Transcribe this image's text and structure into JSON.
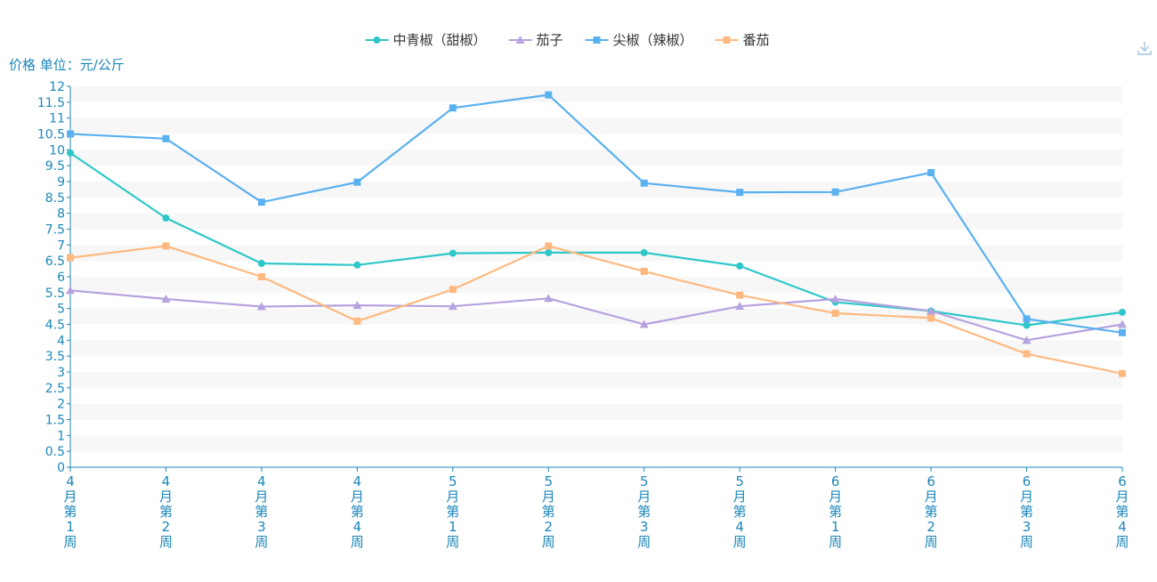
{
  "chart_data": {
    "type": "line",
    "ylabel": "价格 单位：元/公斤",
    "ylim": [
      0,
      12
    ],
    "ytick_step": 0.5,
    "categories": [
      "4月第1周",
      "4月第2周",
      "4月第3周",
      "4月第4周",
      "5月第1周",
      "5月第2周",
      "5月第3周",
      "5月第4周",
      "6月第1周",
      "6月第2周",
      "6月第3周",
      "6月第4周"
    ],
    "series": [
      {
        "name": "中青椒（甜椒）",
        "marker": "circle",
        "color": "#2ec7c9",
        "values": [
          9.9,
          7.85,
          6.42,
          6.37,
          6.74,
          6.76,
          6.76,
          6.34,
          5.2,
          4.92,
          4.47,
          4.88
        ]
      },
      {
        "name": "茄子",
        "marker": "triangle",
        "color": "#b6a2de",
        "values": [
          5.57,
          5.3,
          5.06,
          5.1,
          5.07,
          5.32,
          4.5,
          5.07,
          5.3,
          4.92,
          4.0,
          4.5
        ]
      },
      {
        "name": "尖椒（辣椒）",
        "marker": "square",
        "color": "#5ab1ef",
        "values": [
          10.5,
          10.35,
          8.35,
          8.98,
          11.32,
          11.73,
          8.95,
          8.66,
          8.67,
          9.28,
          4.67,
          4.24
        ]
      },
      {
        "name": "番茄",
        "marker": "square",
        "color": "#ffb980",
        "values": [
          6.6,
          6.97,
          6.0,
          4.6,
          5.6,
          6.97,
          6.17,
          5.42,
          4.85,
          4.7,
          3.57,
          2.95
        ]
      }
    ],
    "grid": "alternating horizontal bands",
    "legend_position": "top-center"
  },
  "toolbar": {
    "download_icon": "download-icon",
    "color": "#a0c4dc"
  },
  "colors": {
    "axis": "#1b87b8",
    "band": "#f7f7f7"
  }
}
